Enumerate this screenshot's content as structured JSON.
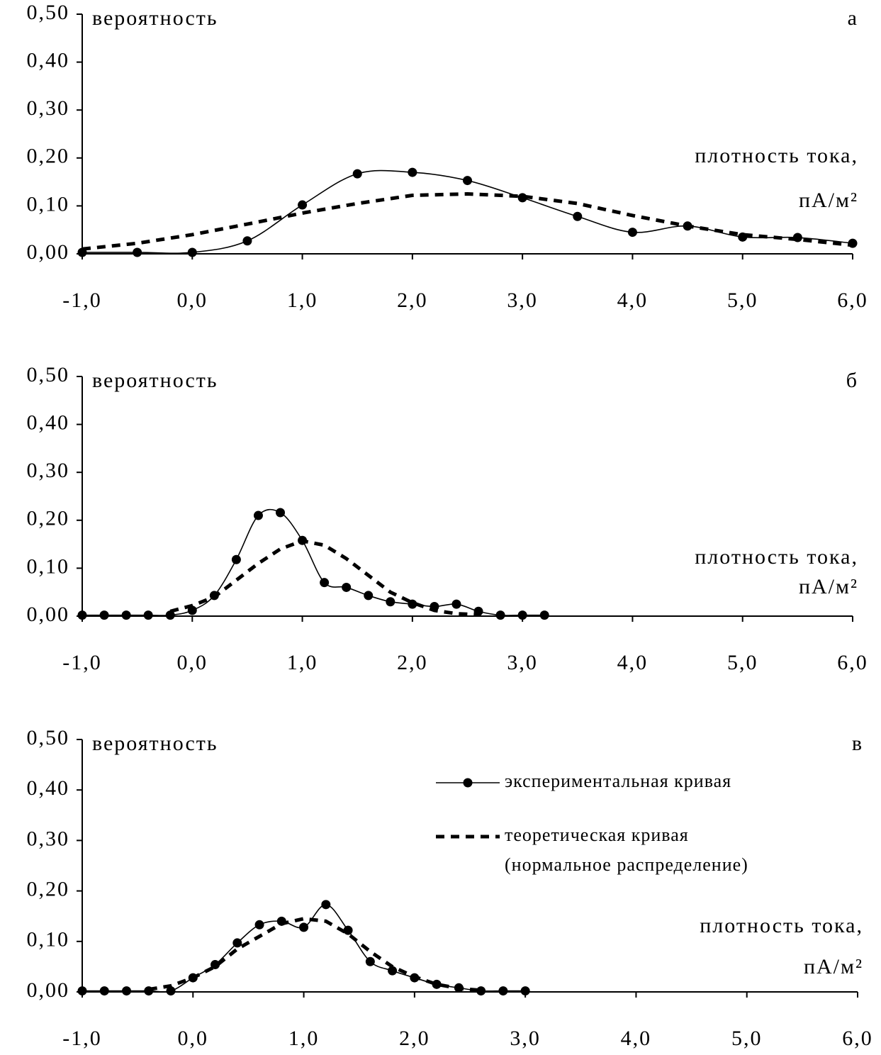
{
  "chart_data": [
    {
      "type": "line",
      "panel_label": "а",
      "y_label": "вероятность",
      "x_label": [
        "плотность тока,",
        "пА/м²"
      ],
      "xlim": [
        -1,
        6
      ],
      "ylim": [
        0,
        0.5
      ],
      "xticks": [
        {
          "value": -1,
          "label": "-1,0"
        },
        {
          "value": 0,
          "label": "0,0"
        },
        {
          "value": 1,
          "label": "1,0"
        },
        {
          "value": 2,
          "label": "2,0"
        },
        {
          "value": 3,
          "label": "3,0"
        },
        {
          "value": 4,
          "label": "4,0"
        },
        {
          "value": 5,
          "label": "5,0"
        },
        {
          "value": 6,
          "label": "6,0"
        }
      ],
      "yticks": [
        {
          "value": 0,
          "label": "0,00"
        },
        {
          "value": 0.1,
          "label": "0,10"
        },
        {
          "value": 0.2,
          "label": "0,20"
        },
        {
          "value": 0.3,
          "label": "0,30"
        },
        {
          "value": 0.4,
          "label": "0,40"
        },
        {
          "value": 0.5,
          "label": "0,50"
        }
      ],
      "series": [
        {
          "color": "#000000",
          "dashed": false,
          "markers": true,
          "x": [
            -1,
            -0.5,
            0,
            0.5,
            1,
            1.5,
            2,
            2.5,
            3,
            3.5,
            4,
            4.5,
            5,
            5.5,
            6
          ],
          "values": [
            0.003,
            0.003,
            0.003,
            0.027,
            0.102,
            0.167,
            0.17,
            0.153,
            0.117,
            0.078,
            0.045,
            0.058,
            0.035,
            0.034,
            0.022
          ]
        },
        {
          "color": "#000000",
          "dashed": true,
          "markers": false,
          "x": [
            -1,
            -0.5,
            0,
            0.5,
            1,
            1.5,
            2,
            2.5,
            3,
            3.5,
            4,
            4.5,
            5,
            5.5,
            6
          ],
          "values": [
            0.01,
            0.022,
            0.04,
            0.062,
            0.085,
            0.105,
            0.122,
            0.125,
            0.12,
            0.105,
            0.08,
            0.058,
            0.04,
            0.03,
            0.018
          ]
        }
      ]
    },
    {
      "type": "line",
      "panel_label": "б",
      "y_label": "вероятность",
      "x_label": [
        "плотность тока,",
        "пА/м²"
      ],
      "xlim": [
        -1,
        6
      ],
      "ylim": [
        0,
        0.5
      ],
      "xticks": [
        {
          "value": -1,
          "label": "-1,0"
        },
        {
          "value": 0,
          "label": "0,0"
        },
        {
          "value": 1,
          "label": "1,0"
        },
        {
          "value": 2,
          "label": "2,0"
        },
        {
          "value": 3,
          "label": "3,0"
        },
        {
          "value": 4,
          "label": "4,0"
        },
        {
          "value": 5,
          "label": "5,0"
        },
        {
          "value": 6,
          "label": "6,0"
        }
      ],
      "yticks": [
        {
          "value": 0,
          "label": "0,00"
        },
        {
          "value": 0.1,
          "label": "0,10"
        },
        {
          "value": 0.2,
          "label": "0,20"
        },
        {
          "value": 0.3,
          "label": "0,30"
        },
        {
          "value": 0.4,
          "label": "0,40"
        },
        {
          "value": 0.5,
          "label": "0,50"
        }
      ],
      "series": [
        {
          "color": "#000000",
          "dashed": false,
          "markers": true,
          "x": [
            -1,
            -0.8,
            -0.6,
            -0.4,
            -0.2,
            0,
            0.2,
            0.4,
            0.6,
            0.8,
            1,
            1.2,
            1.4,
            1.6,
            1.8,
            2,
            2.2,
            2.4,
            2.6,
            2.8,
            3,
            3.2
          ],
          "values": [
            0.002,
            0.002,
            0.002,
            0.002,
            0.002,
            0.012,
            0.043,
            0.118,
            0.21,
            0.216,
            0.158,
            0.07,
            0.06,
            0.043,
            0.03,
            0.025,
            0.02,
            0.025,
            0.01,
            0.002,
            0.002,
            0.002
          ]
        },
        {
          "color": "#000000",
          "dashed": true,
          "markers": false,
          "x": [
            -0.2,
            0,
            0.2,
            0.4,
            0.6,
            0.8,
            1,
            1.2,
            1.4,
            1.6,
            1.8,
            2,
            2.2,
            2.4,
            2.6
          ],
          "values": [
            0.01,
            0.022,
            0.04,
            0.075,
            0.11,
            0.14,
            0.157,
            0.148,
            0.12,
            0.085,
            0.05,
            0.028,
            0.012,
            0.005,
            0.003
          ]
        }
      ]
    },
    {
      "type": "line",
      "panel_label": "в",
      "y_label": "вероятность",
      "x_label": [
        "плотность тока,",
        "пА/м²"
      ],
      "xlim": [
        -1,
        6
      ],
      "ylim": [
        0,
        0.5
      ],
      "xticks": [
        {
          "value": -1,
          "label": "-1,0"
        },
        {
          "value": 0,
          "label": "0,0"
        },
        {
          "value": 1,
          "label": "1,0"
        },
        {
          "value": 2,
          "label": "2,0"
        },
        {
          "value": 3,
          "label": "3,0"
        },
        {
          "value": 4,
          "label": "4,0"
        },
        {
          "value": 5,
          "label": "5,0"
        },
        {
          "value": 6,
          "label": "6,0"
        }
      ],
      "yticks": [
        {
          "value": 0,
          "label": "0,00"
        },
        {
          "value": 0.1,
          "label": "0,10"
        },
        {
          "value": 0.2,
          "label": "0,20"
        },
        {
          "value": 0.3,
          "label": "0,30"
        },
        {
          "value": 0.4,
          "label": "0,40"
        },
        {
          "value": 0.5,
          "label": "0,50"
        }
      ],
      "series": [
        {
          "name": [
            "экспериментальная кривая"
          ],
          "color": "#000000",
          "dashed": false,
          "markers": true,
          "x": [
            -1,
            -0.8,
            -0.6,
            -0.4,
            -0.2,
            0,
            0.2,
            0.4,
            0.6,
            0.8,
            1,
            1.2,
            1.4,
            1.6,
            1.8,
            2,
            2.2,
            2.4,
            2.6,
            2.8,
            3
          ],
          "values": [
            0.002,
            0.002,
            0.002,
            0.002,
            0.002,
            0.028,
            0.054,
            0.097,
            0.133,
            0.14,
            0.128,
            0.173,
            0.122,
            0.06,
            0.042,
            0.028,
            0.015,
            0.008,
            0.002,
            0.002,
            0.002
          ]
        },
        {
          "name": [
            "теоретическая кривая",
            "(нормальное распределение)"
          ],
          "color": "#000000",
          "dashed": true,
          "markers": false,
          "x": [
            -0.4,
            -0.2,
            0,
            0.2,
            0.4,
            0.6,
            0.8,
            1,
            1.2,
            1.4,
            1.6,
            1.8,
            2,
            2.2,
            2.4,
            2.6
          ],
          "values": [
            0.005,
            0.012,
            0.028,
            0.05,
            0.085,
            0.11,
            0.135,
            0.145,
            0.14,
            0.115,
            0.08,
            0.05,
            0.03,
            0.015,
            0.007,
            0.003
          ]
        }
      ]
    }
  ]
}
